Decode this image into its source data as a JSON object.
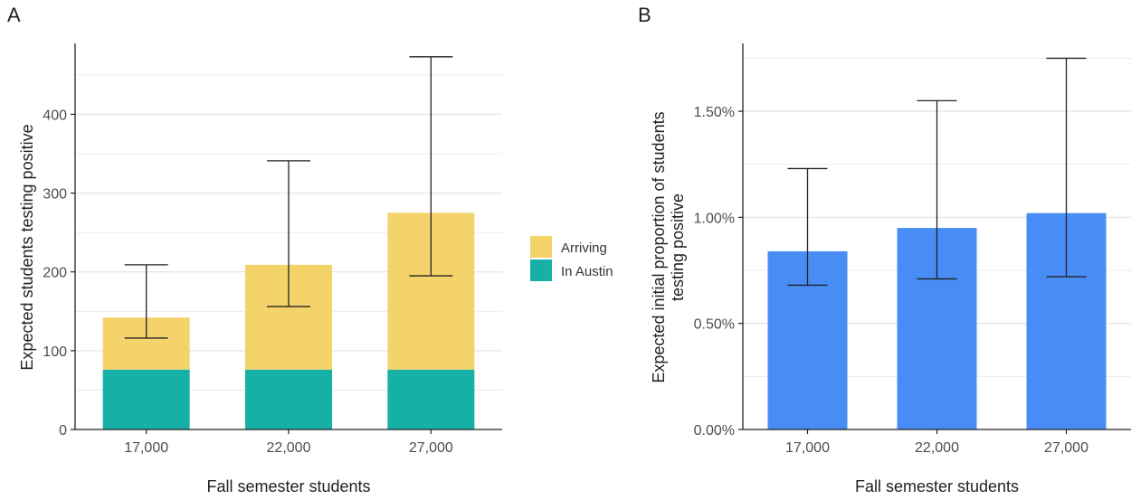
{
  "panels": {
    "a_label": "A",
    "b_label": "B"
  },
  "colors": {
    "arriving": "#F5D36B",
    "in_austin": "#16B0A6",
    "proportion": "#478DF5",
    "grid": "#E6E6E6",
    "axis": "#222222",
    "errorbar": "#222222"
  },
  "chart_data": [
    {
      "id": "A",
      "type": "bar",
      "stacked": true,
      "grid": true,
      "legend_position": "right",
      "xlabel": "Fall semester students",
      "ylabel": "Expected students testing positive",
      "categories": [
        "17,000",
        "22,000",
        "27,000"
      ],
      "series": [
        {
          "name": "In Austin",
          "color_key": "in_austin",
          "values": [
            76,
            76,
            76
          ]
        },
        {
          "name": "Arriving",
          "color_key": "arriving",
          "values": [
            66,
            133,
            199
          ]
        }
      ],
      "totals": [
        142,
        209,
        275
      ],
      "error_low": [
        116,
        156,
        195
      ],
      "error_high": [
        209,
        341,
        473
      ],
      "ylim": [
        0,
        490
      ],
      "yticks": [
        0,
        100,
        200,
        300,
        400
      ],
      "ytick_labels": [
        "0",
        "100",
        "200",
        "300",
        "400"
      ],
      "legend": [
        {
          "label": "Arriving",
          "color_key": "arriving"
        },
        {
          "label": "In Austin",
          "color_key": "in_austin"
        }
      ]
    },
    {
      "id": "B",
      "type": "bar",
      "grid": true,
      "xlabel": "Fall semester students",
      "ylabel_lines": [
        "Expected initial proportion of students",
        "testing positive"
      ],
      "categories": [
        "17,000",
        "22,000",
        "27,000"
      ],
      "values": [
        0.84,
        0.95,
        1.02
      ],
      "error_low": [
        0.68,
        0.71,
        0.72
      ],
      "error_high": [
        1.23,
        1.55,
        1.75
      ],
      "ylim": [
        0,
        1.82
      ],
      "yticks": [
        0,
        0.5,
        1.0,
        1.5
      ],
      "ytick_labels": [
        "0.00%",
        "0.50%",
        "1.00%",
        "1.50%"
      ],
      "color_key": "proportion"
    }
  ]
}
